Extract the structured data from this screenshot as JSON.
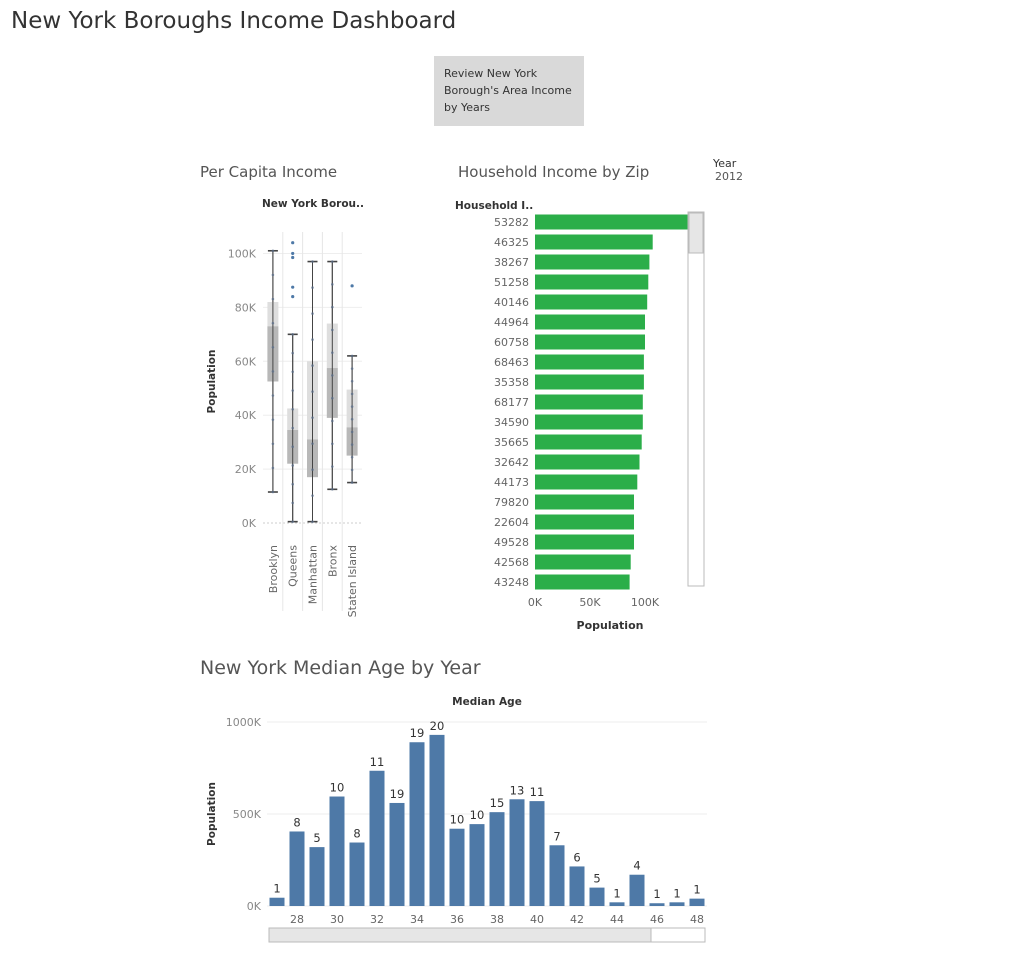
{
  "dashboard": {
    "title": "New York Boroughs Income Dashboard",
    "review_button": "Review New York Borough's Area Income by Years",
    "filter": {
      "label": "Year",
      "value": "2012"
    }
  },
  "chart_data": [
    {
      "type": "box",
      "section_title": "Per Capita Income",
      "header": "New York Borou..",
      "ylabel": "Population",
      "ylim": [
        0,
        105000
      ],
      "y_ticks": [
        "0K",
        "20K",
        "40K",
        "60K",
        "80K",
        "100K"
      ],
      "y_tick_values": [
        0,
        20000,
        40000,
        60000,
        80000,
        100000
      ],
      "grid": true,
      "colors": {
        "box_light": "#dedede",
        "box_dark": "#b8b8b8",
        "whisker": "#444444",
        "point": "#4e79a7"
      },
      "categories": [
        "Brooklyn",
        "Queens",
        "Manhattan",
        "Bronx",
        "Staten Island"
      ],
      "boxes": [
        {
          "name": "Brooklyn",
          "min": 11500,
          "q1": 52500,
          "median": 73000,
          "q3": 82000,
          "max": 101000,
          "outliers": []
        },
        {
          "name": "Queens",
          "min": 500,
          "q1": 22000,
          "median": 34500,
          "q3": 42500,
          "max": 70000,
          "outliers": [
            84000,
            87500,
            98500,
            100000,
            104000
          ]
        },
        {
          "name": "Manhattan",
          "min": 500,
          "q1": 17000,
          "median": 31000,
          "q3": 60000,
          "max": 97000,
          "outliers": []
        },
        {
          "name": "Bronx",
          "min": 12500,
          "q1": 39000,
          "median": 57500,
          "q3": 74000,
          "max": 97000,
          "outliers": []
        },
        {
          "name": "Staten Island",
          "min": 15000,
          "q1": 25000,
          "median": 35500,
          "q3": 49500,
          "max": 62000,
          "outliers": [
            88000
          ]
        }
      ]
    },
    {
      "type": "bar",
      "orientation": "horizontal",
      "section_title": "Household Income by Zip",
      "header": "Household I..",
      "xlabel": "Population",
      "xlim": [
        0,
        150000
      ],
      "x_ticks": [
        "0K",
        "50K",
        "100K"
      ],
      "x_tick_values": [
        0,
        50000,
        100000
      ],
      "color": "#2bae49",
      "categories": [
        "53282",
        "46325",
        "38267",
        "51258",
        "40146",
        "44964",
        "60758",
        "68463",
        "35358",
        "68177",
        "34590",
        "35665",
        "32642",
        "44173",
        "79820",
        "22604",
        "49528",
        "42568",
        "43248"
      ],
      "values": [
        143000,
        107000,
        104000,
        103000,
        102000,
        100000,
        100000,
        99000,
        99000,
        98000,
        98000,
        97000,
        95000,
        93000,
        90000,
        90000,
        90000,
        87000,
        86000
      ]
    },
    {
      "type": "bar",
      "section_title": "New York Median Age by Year",
      "header": "Median Age",
      "ylabel": "Population",
      "ylim": [
        0,
        1000000
      ],
      "y_ticks": [
        "0K",
        "500K",
        "1000K"
      ],
      "y_tick_values": [
        0,
        500000,
        1000000
      ],
      "grid": true,
      "color": "#4e79a7",
      "categories": [
        27,
        28,
        29,
        30,
        31,
        32,
        33,
        34,
        35,
        36,
        37,
        38,
        39,
        40,
        41,
        42,
        43,
        44,
        45,
        46,
        47,
        48
      ],
      "x_ticks": [
        "28",
        "30",
        "32",
        "34",
        "36",
        "38",
        "40",
        "42",
        "44",
        "46",
        "48"
      ],
      "x_tick_values": [
        28,
        30,
        32,
        34,
        36,
        38,
        40,
        42,
        44,
        46,
        48
      ],
      "values": [
        45000,
        405000,
        320000,
        595000,
        345000,
        735000,
        560000,
        890000,
        930000,
        420000,
        445000,
        510000,
        580000,
        570000,
        330000,
        215000,
        100000,
        20000,
        170000,
        15000,
        20000,
        40000
      ],
      "labels": [
        "1",
        "8",
        "5",
        "10",
        "8",
        "11",
        "19",
        "19",
        "20",
        "10",
        "10",
        "15",
        "13",
        "11",
        "7",
        "6",
        "5",
        "1",
        "4",
        "1",
        "1",
        "1"
      ]
    }
  ]
}
